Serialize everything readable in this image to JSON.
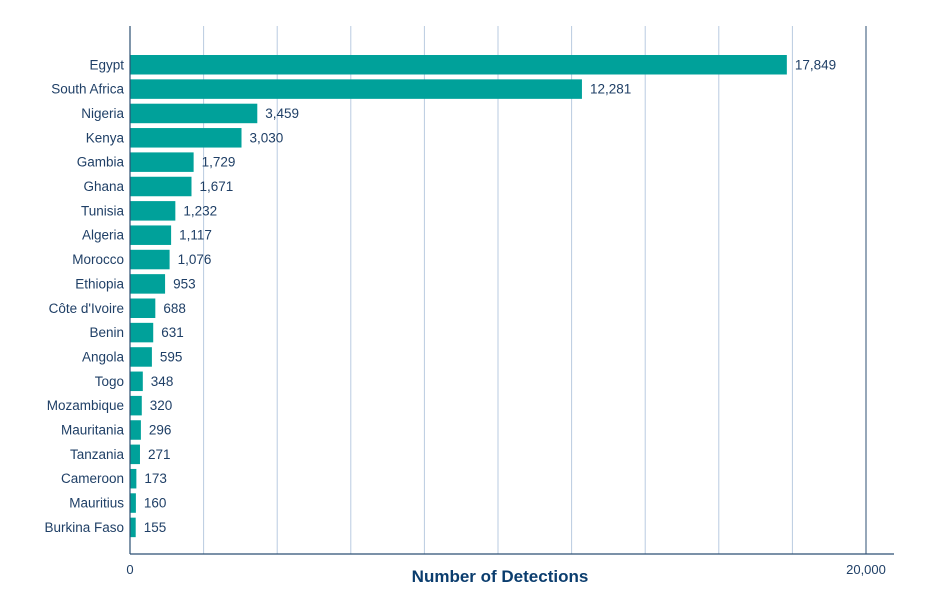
{
  "chart_data": {
    "type": "bar",
    "orientation": "horizontal",
    "categories": [
      "Egypt",
      "South Africa",
      "Nigeria",
      "Kenya",
      "Gambia",
      "Ghana",
      "Tunisia",
      "Algeria",
      "Morocco",
      "Ethiopia",
      "Côte d'Ivoire",
      "Benin",
      "Angola",
      "Togo",
      "Mozambique",
      "Mauritania",
      "Tanzania",
      "Cameroon",
      "Mauritius",
      "Burkina Faso"
    ],
    "values": [
      17849,
      12281,
      3459,
      3030,
      1729,
      1671,
      1232,
      1117,
      1076,
      953,
      688,
      631,
      595,
      348,
      320,
      296,
      271,
      173,
      160,
      155
    ],
    "value_labels": [
      "17,849",
      "12,281",
      "3,459",
      "3,030",
      "1,729",
      "1,671",
      "1,232",
      "1,117",
      "1,076",
      "953",
      "688",
      "631",
      "595",
      "348",
      "320",
      "296",
      "271",
      "173",
      "160",
      "155"
    ],
    "title": "",
    "xlabel": "Number of Detections",
    "ylabel": "",
    "xlim": [
      0,
      20000
    ],
    "x_tick_labels": [
      "0",
      "20,000"
    ],
    "grid": true,
    "colors": {
      "bar": "#00a19a",
      "text": "#1f3f66",
      "axis_title": "#0b3d6e",
      "axis_line": "#2c4f73",
      "grid": "#b9cbe0"
    }
  }
}
